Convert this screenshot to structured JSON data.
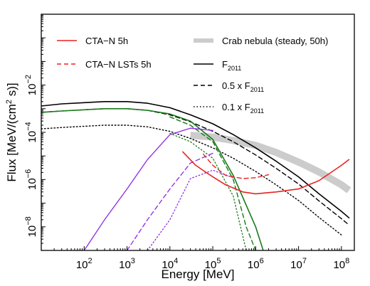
{
  "chart_data": {
    "type": "line",
    "xlabel": "Energy [MeV]",
    "ylabel": "Flux [MeV/(cm",
    "ylabel_sup": "2",
    "ylabel_end": " s)]",
    "xscale": "log",
    "yscale": "log",
    "xlim": [
      10,
      200000000
    ],
    "ylim": [
      1e-09,
      10
    ],
    "x_ticks": [
      {
        "value": 100,
        "base": "10",
        "exp": "2"
      },
      {
        "value": 1000,
        "base": "10",
        "exp": "3"
      },
      {
        "value": 10000,
        "base": "10",
        "exp": "4"
      },
      {
        "value": 100000,
        "base": "10",
        "exp": "5"
      },
      {
        "value": 1000000,
        "base": "10",
        "exp": "6"
      },
      {
        "value": 10000000,
        "base": "10",
        "exp": "7"
      },
      {
        "value": 100000000,
        "base": "10",
        "exp": "8"
      }
    ],
    "y_ticks": [
      {
        "value": 1e-08,
        "base": "10",
        "exp": "−8"
      },
      {
        "value": 1e-06,
        "base": "10",
        "exp": "−6"
      },
      {
        "value": 0.0001,
        "base": "10",
        "exp": "−4"
      },
      {
        "value": 0.01,
        "base": "10",
        "exp": "−2"
      }
    ],
    "legend": [
      {
        "label": "CTA−N 5h",
        "sub": "",
        "color": "#e8231f",
        "dash": "solid",
        "width": 1.6
      },
      {
        "label": "CTA−N LSTs 5h",
        "sub": "",
        "color": "#e8231f",
        "dash": "dashed",
        "width": 1.4
      },
      {
        "label": "Crab nebula (steady, 50h)",
        "sub": "",
        "color": "#cccccc",
        "dash": "solid",
        "width": 6
      },
      {
        "label": "F",
        "sub": "2011",
        "color": "#000000",
        "dash": "solid",
        "width": 1.6
      },
      {
        "label": "0.5 x F",
        "sub": "2011",
        "color": "#000000",
        "dash": "dashed",
        "width": 1.4
      },
      {
        "label": "0.1 x F",
        "sub": "2011",
        "color": "#000000",
        "dash": "dotted",
        "width": 1.4
      }
    ],
    "series": [
      {
        "style": "crab",
        "color": "#cccccc",
        "dash": "solid",
        "width": 10,
        "x": [
          30000,
          100000,
          300000,
          1000000,
          3000000,
          10000000,
          30000000,
          100000000,
          150000000
        ],
        "y": [
          7.5e-05,
          6.3e-05,
          4.5e-05,
          2.8e-05,
          1.4e-05,
          5.5e-06,
          2.1e-06,
          6e-07,
          3.5e-07
        ]
      },
      {
        "style": "F2011",
        "color": "#000000",
        "dash": "solid",
        "width": 1.6,
        "x": [
          10,
          30,
          100,
          300,
          1000,
          3000,
          10000,
          30000,
          100000,
          300000,
          1000000,
          3000000,
          10000000,
          30000000,
          100000000,
          150000000
        ],
        "y": [
          0.0013,
          0.0016,
          0.0018,
          0.002,
          0.002,
          0.0017,
          0.0011,
          0.00055,
          0.00023,
          8e-05,
          2.2e-05,
          6e-06,
          1.3e-06,
          2.5e-07,
          4.5e-08,
          2.4e-08
        ]
      },
      {
        "style": "half",
        "color": "#000000",
        "dash": "dashed",
        "width": 1.4,
        "x": [
          10,
          30,
          100,
          300,
          1000,
          3000,
          10000,
          30000,
          100000,
          300000,
          1000000,
          3000000,
          10000000,
          30000000,
          100000000,
          150000000
        ],
        "y": [
          0.0007,
          0.0008,
          0.0009,
          0.001,
          0.001,
          0.00085,
          0.00055,
          0.00028,
          0.00011,
          4e-05,
          1.1e-05,
          3e-06,
          6.5e-07,
          1.25e-07,
          2.2e-08,
          1.2e-08
        ]
      },
      {
        "style": "tenth",
        "color": "#000000",
        "dash": "dotted",
        "width": 1.4,
        "x": [
          10,
          30,
          100,
          300,
          1000,
          3000,
          10000,
          30000,
          100000,
          300000,
          1000000,
          3000000,
          10000000,
          30000000,
          100000000
        ],
        "y": [
          0.00014,
          0.00016,
          0.00018,
          0.0002,
          0.0002,
          0.00017,
          0.00011,
          5.5e-05,
          2.2e-05,
          8e-06,
          2.2e-06,
          6e-07,
          1.3e-07,
          2.5e-08,
          4.5e-09
        ]
      },
      {
        "style": "green1",
        "color": "#1a7a1a",
        "dash": "solid",
        "width": 1.6,
        "x": [
          10,
          30,
          100,
          300,
          1000,
          3000,
          10000,
          30000,
          100000,
          300000,
          1000000,
          1500000
        ],
        "y": [
          0.0007,
          0.0008,
          0.0009,
          0.001,
          0.001,
          0.00085,
          0.0006,
          0.0003,
          5e-05,
          1.5e-06,
          1e-08,
          1e-09
        ]
      },
      {
        "style": "green2",
        "color": "#1a7a1a",
        "dash": "dashed",
        "width": 1.4,
        "x": [
          10000,
          30000,
          100000,
          300000,
          600000,
          1000000
        ],
        "y": [
          0.00045,
          0.0002,
          4e-05,
          1e-06,
          1e-08,
          1e-09
        ]
      },
      {
        "style": "green3",
        "color": "#1a7a1a",
        "dash": "dotted",
        "width": 1.3,
        "x": [
          10000,
          30000,
          100000,
          300000,
          600000
        ],
        "y": [
          9e-05,
          4e-05,
          8e-06,
          2e-07,
          1e-09
        ]
      },
      {
        "style": "purple1",
        "color": "#8a2be2",
        "dash": "solid",
        "width": 1.3,
        "x": [
          100,
          300,
          1000,
          3000,
          10000,
          30000,
          100000
        ],
        "y": [
          1e-09,
          2e-08,
          4e-07,
          7e-06,
          8e-05,
          0.00015,
          0.00012
        ]
      },
      {
        "style": "purple2",
        "color": "#8a2be2",
        "dash": "dashed",
        "width": 1.3,
        "x": [
          1000,
          3000,
          10000,
          30000,
          100000
        ],
        "y": [
          1e-09,
          2e-08,
          4e-07,
          5e-06,
          1.3e-05
        ]
      },
      {
        "style": "purple3",
        "color": "#8a2be2",
        "dash": "dotted",
        "width": 1.3,
        "x": [
          3000,
          10000,
          30000,
          100000,
          300000
        ],
        "y": [
          1e-09,
          2e-08,
          1.1e-06,
          2.5e-06,
          1.2e-06
        ]
      },
      {
        "style": "red_solid",
        "color": "#e8231f",
        "dash": "solid",
        "width": 1.6,
        "x": [
          20000,
          40000,
          70000,
          100000,
          200000,
          500000,
          1000000,
          3000000,
          10000000,
          30000000,
          100000000,
          150000000
        ],
        "y": [
          1.5e-05,
          4e-06,
          2e-06,
          1.3e-06,
          6e-07,
          3e-07,
          2.5e-07,
          3e-07,
          4e-07,
          9e-07,
          4e-06,
          7e-06
        ]
      },
      {
        "style": "red_dashed",
        "color": "#e8231f",
        "dash": "dashed",
        "width": 1.4,
        "x": [
          60000,
          100000,
          200000,
          500000,
          1000000,
          2000000
        ],
        "y": [
          1.2e-05,
          4e-06,
          1.5e-06,
          1.1e-06,
          1.2e-06,
          1.6e-06
        ]
      }
    ]
  }
}
